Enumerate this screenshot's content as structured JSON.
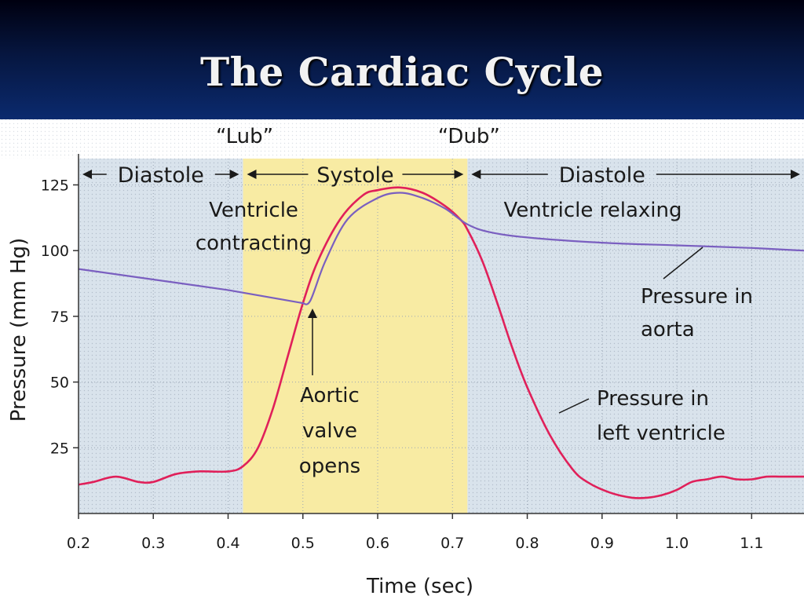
{
  "slide": {
    "title": "The Cardiac Cycle"
  },
  "colors": {
    "header_bg": "#0b2a6e",
    "systole_band": "#f8eba3",
    "diastole_band": "#d9e3ec",
    "ventricle_curve": "#e0205a",
    "aorta_curve": "#7a5fc0"
  },
  "chart_data": {
    "type": "line",
    "xlabel": "Time (sec)",
    "ylabel": "Pressure (mm Hg)",
    "xlim": [
      0.2,
      1.17
    ],
    "ylim": [
      0,
      135
    ],
    "x_ticks": [
      0.2,
      0.3,
      0.4,
      0.5,
      0.6,
      0.7,
      0.8,
      0.9,
      1.0,
      1.1
    ],
    "x_tick_labels": [
      "0.2",
      "0.3",
      "0.4",
      "0.5",
      "0.6",
      "0.7",
      "0.8",
      "0.9",
      "1.0",
      "1.1"
    ],
    "y_ticks": [
      25,
      50,
      75,
      100,
      125
    ],
    "y_tick_labels": [
      "25",
      "50",
      "75",
      "100",
      "125"
    ],
    "grid": true,
    "phases": [
      {
        "label": "Diastole",
        "x_start": 0.2,
        "x_end": 0.42
      },
      {
        "label": "Systole",
        "x_start": 0.42,
        "x_end": 0.72
      },
      {
        "label": "Diastole",
        "x_start": 0.72,
        "x_end": 1.17
      }
    ],
    "heart_sounds": [
      {
        "label": "“Lub”",
        "x": 0.42
      },
      {
        "label": "“Dub”",
        "x": 0.72
      }
    ],
    "series": [
      {
        "name": "Pressure in left ventricle",
        "x": [
          0.2,
          0.22,
          0.25,
          0.28,
          0.3,
          0.33,
          0.36,
          0.4,
          0.42,
          0.44,
          0.46,
          0.48,
          0.5,
          0.52,
          0.55,
          0.58,
          0.6,
          0.63,
          0.66,
          0.69,
          0.71,
          0.72,
          0.74,
          0.76,
          0.78,
          0.8,
          0.83,
          0.86,
          0.88,
          0.91,
          0.94,
          0.96,
          0.98,
          1.0,
          1.02,
          1.04,
          1.06,
          1.08,
          1.1,
          1.12,
          1.14,
          1.17
        ],
        "y": [
          11,
          12,
          14,
          12,
          12,
          15,
          16,
          16,
          18,
          25,
          40,
          60,
          80,
          96,
          112,
          121,
          123,
          124,
          122,
          117,
          112,
          108,
          96,
          80,
          63,
          48,
          30,
          17,
          12,
          8,
          6,
          6,
          7,
          9,
          12,
          13,
          14,
          13,
          13,
          14,
          14,
          14
        ]
      },
      {
        "name": "Pressure in aorta",
        "x": [
          0.2,
          0.3,
          0.4,
          0.5,
          0.51,
          0.53,
          0.56,
          0.6,
          0.63,
          0.66,
          0.69,
          0.72,
          0.75,
          0.8,
          0.9,
          1.0,
          1.1,
          1.17
        ],
        "y": [
          93,
          89,
          85,
          80,
          81,
          96,
          112,
          120,
          122,
          120,
          116,
          110,
          107,
          105,
          103,
          102,
          101,
          100
        ]
      }
    ],
    "annotations": [
      {
        "lines": [
          "Ventricle",
          "contracting"
        ]
      },
      {
        "lines": [
          "Ventricle relaxing"
        ]
      },
      {
        "lines": [
          "Pressure in",
          "aorta"
        ]
      },
      {
        "lines": [
          "Aortic",
          "valve",
          "opens"
        ]
      },
      {
        "lines": [
          "Pressure in",
          "left ventricle"
        ]
      }
    ]
  }
}
